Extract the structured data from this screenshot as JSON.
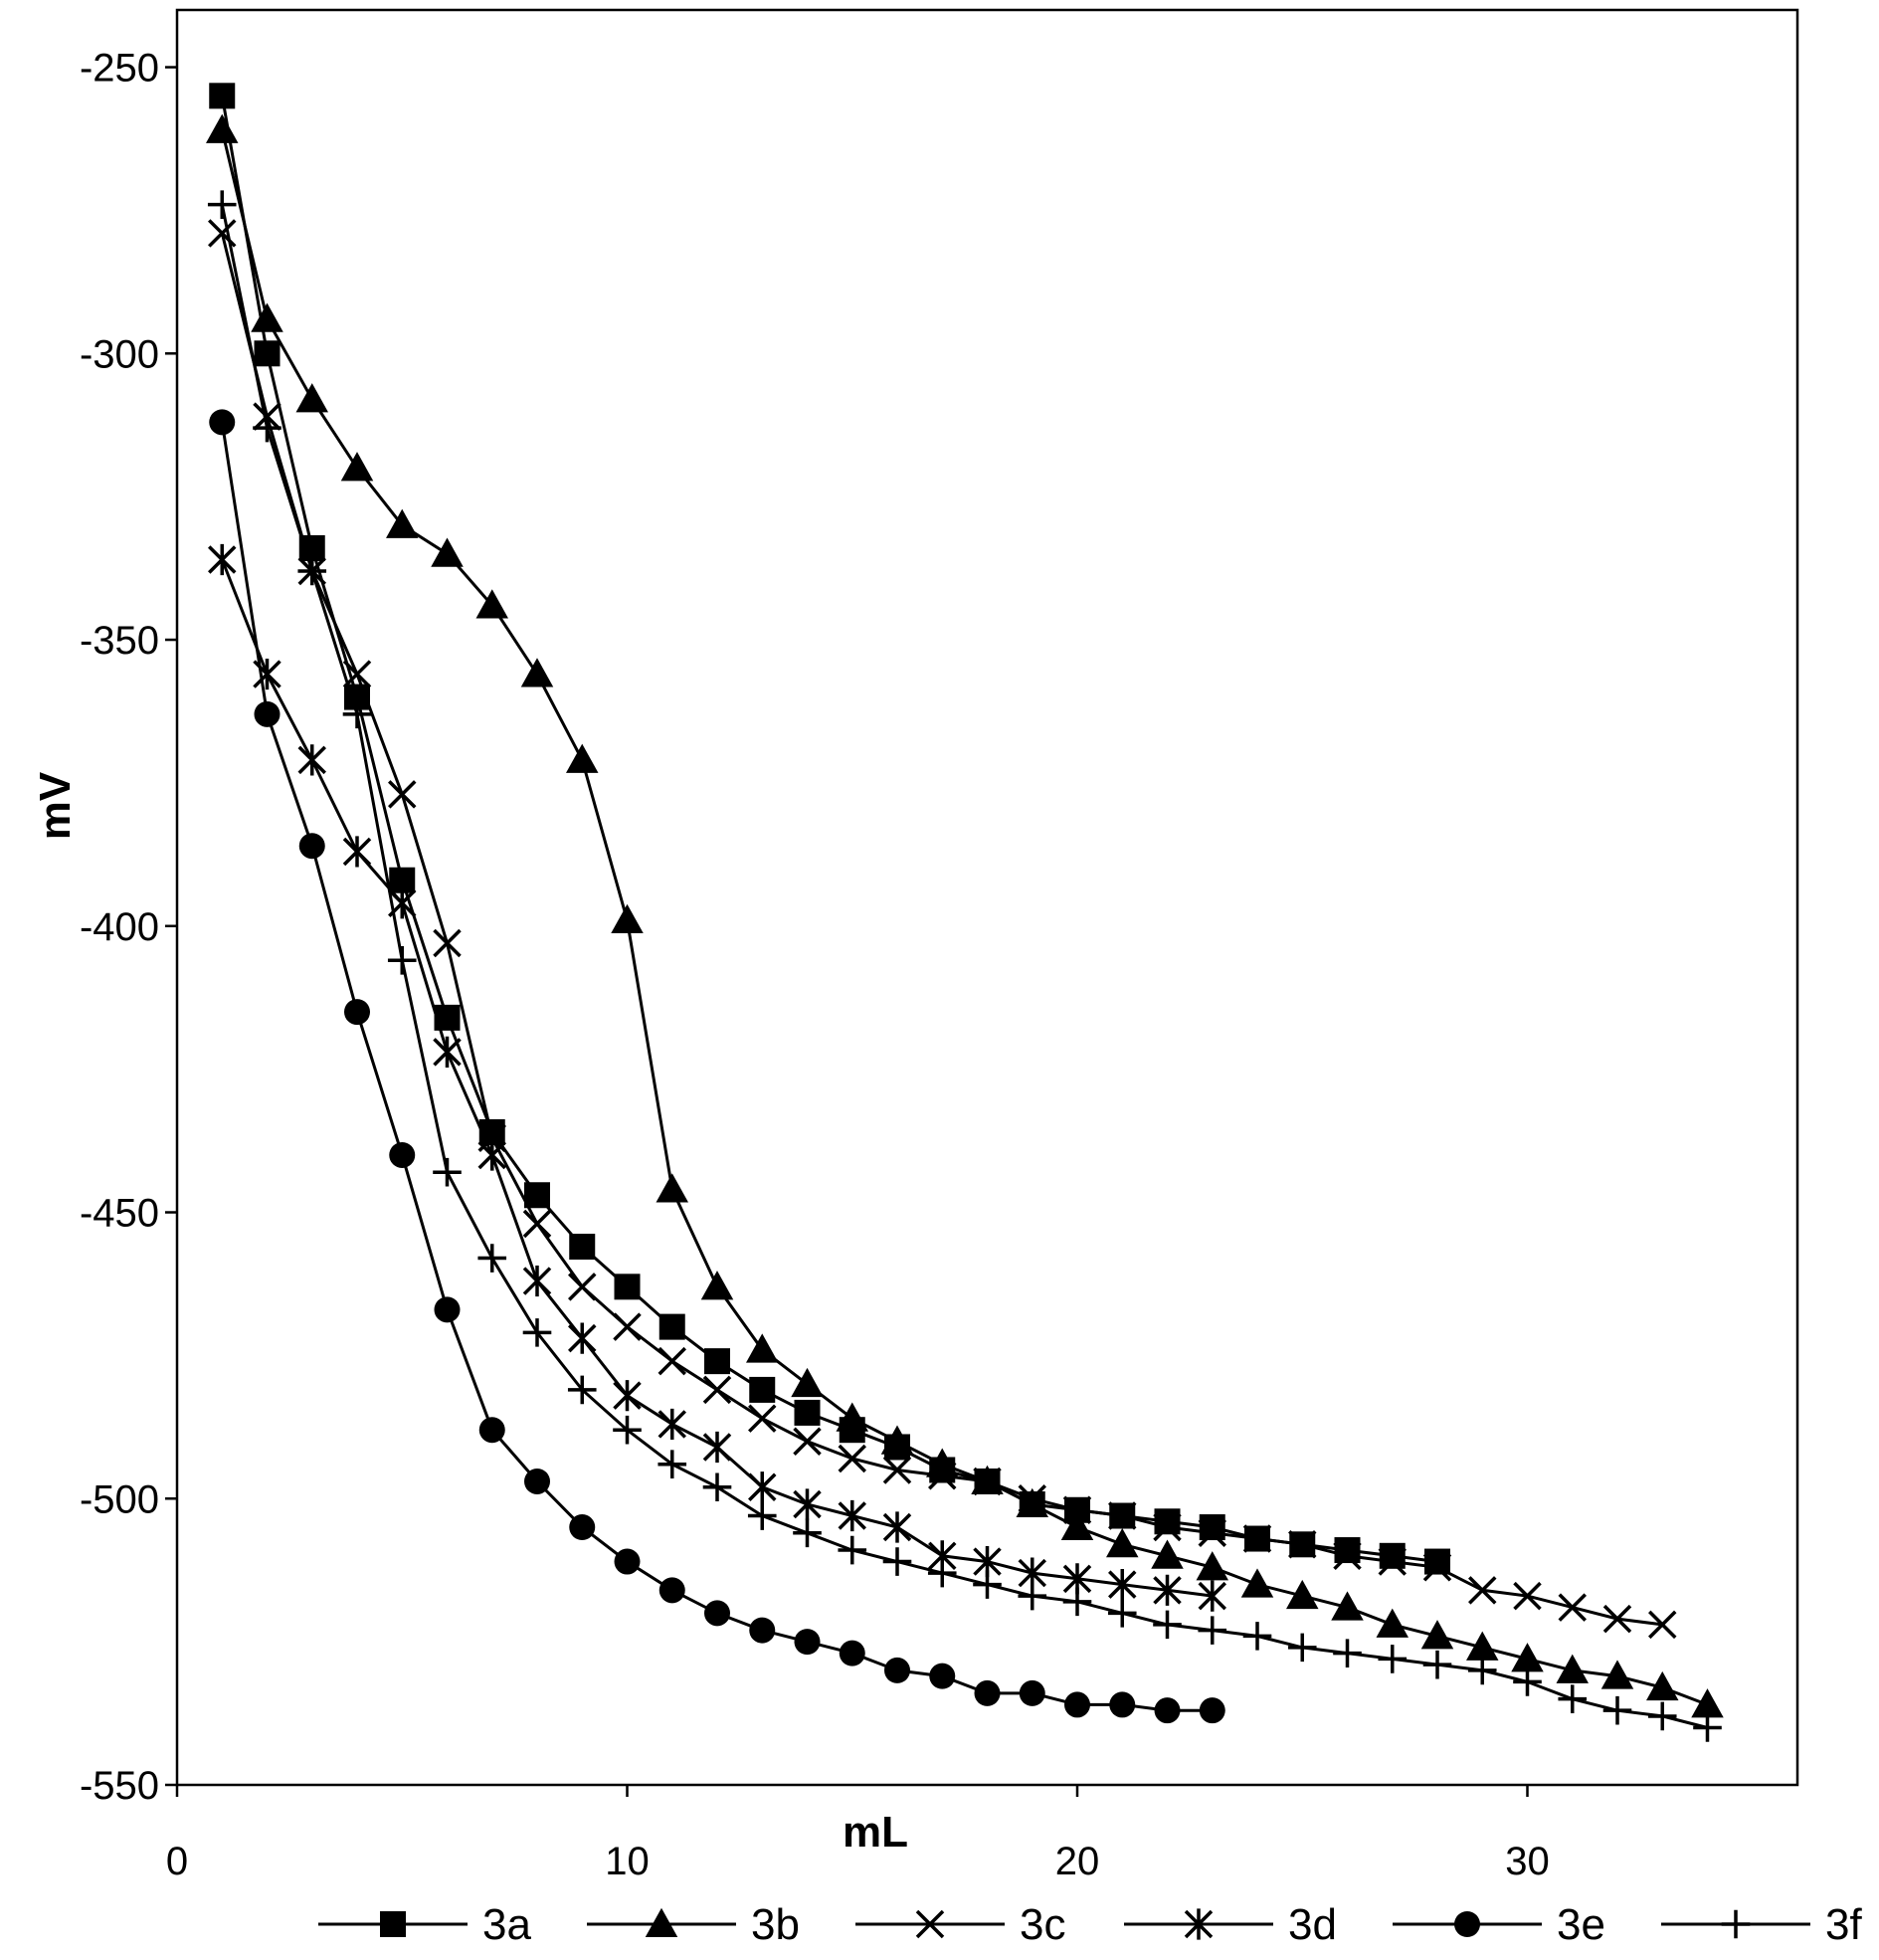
{
  "chart_data": {
    "type": "line",
    "title": "",
    "xlabel": "mL",
    "ylabel": "mV",
    "xlim": [
      0,
      36
    ],
    "ylim": [
      -550,
      -240
    ],
    "x_ticks": [
      0,
      10,
      20,
      30
    ],
    "y_ticks": [
      -250,
      -300,
      -350,
      -400,
      -450,
      -500,
      -550
    ],
    "grid": false,
    "legend_position": "bottom",
    "series": [
      {
        "name": "3a",
        "marker": "square",
        "points": [
          [
            1,
            -255
          ],
          [
            2,
            -300
          ],
          [
            3,
            -334
          ],
          [
            4,
            -360
          ],
          [
            5,
            -392
          ],
          [
            6,
            -416
          ],
          [
            7,
            -436
          ],
          [
            8,
            -447
          ],
          [
            9,
            -456
          ],
          [
            10,
            -463
          ],
          [
            11,
            -470
          ],
          [
            12,
            -476
          ],
          [
            13,
            -481
          ],
          [
            14,
            -485
          ],
          [
            15,
            -488
          ],
          [
            16,
            -491
          ],
          [
            17,
            -495
          ],
          [
            18,
            -497
          ],
          [
            19,
            -501
          ],
          [
            20,
            -502
          ],
          [
            21,
            -503
          ],
          [
            22,
            -504
          ],
          [
            23,
            -505
          ],
          [
            24,
            -507
          ],
          [
            25,
            -508
          ],
          [
            26,
            -509
          ],
          [
            27,
            -510
          ],
          [
            28,
            -511
          ]
        ]
      },
      {
        "name": "3b",
        "marker": "triangle",
        "points": [
          [
            1,
            -261
          ],
          [
            2,
            -294
          ],
          [
            3,
            -308
          ],
          [
            4,
            -320
          ],
          [
            5,
            -330
          ],
          [
            6,
            -335
          ],
          [
            7,
            -344
          ],
          [
            8,
            -356
          ],
          [
            9,
            -371
          ],
          [
            10,
            -399
          ],
          [
            11,
            -446
          ],
          [
            12,
            -463
          ],
          [
            13,
            -474
          ],
          [
            14,
            -480
          ],
          [
            15,
            -486
          ],
          [
            16,
            -490
          ],
          [
            17,
            -494
          ],
          [
            18,
            -497
          ],
          [
            19,
            -501
          ],
          [
            20,
            -505
          ],
          [
            21,
            -508
          ],
          [
            22,
            -510
          ],
          [
            23,
            -512
          ],
          [
            24,
            -515
          ],
          [
            25,
            -517
          ],
          [
            26,
            -519
          ],
          [
            27,
            -522
          ],
          [
            28,
            -524
          ],
          [
            29,
            -526
          ],
          [
            30,
            -528
          ],
          [
            31,
            -530
          ],
          [
            32,
            -531
          ],
          [
            33,
            -533
          ],
          [
            34,
            -536
          ]
        ]
      },
      {
        "name": "3c",
        "marker": "x",
        "points": [
          [
            1,
            -279
          ],
          [
            2,
            -311
          ],
          [
            3,
            -338
          ],
          [
            4,
            -356
          ],
          [
            5,
            -377
          ],
          [
            6,
            -403
          ],
          [
            7,
            -437
          ],
          [
            8,
            -452
          ],
          [
            9,
            -463
          ],
          [
            10,
            -470
          ],
          [
            11,
            -476
          ],
          [
            12,
            -481
          ],
          [
            13,
            -486
          ],
          [
            14,
            -490
          ],
          [
            15,
            -493
          ],
          [
            16,
            -495
          ],
          [
            17,
            -496
          ],
          [
            18,
            -497
          ],
          [
            19,
            -500
          ],
          [
            20,
            -502
          ],
          [
            21,
            -503
          ],
          [
            22,
            -505
          ],
          [
            23,
            -506
          ],
          [
            24,
            -507
          ],
          [
            25,
            -508
          ],
          [
            26,
            -510
          ],
          [
            27,
            -511
          ],
          [
            28,
            -512
          ],
          [
            29,
            -516
          ],
          [
            30,
            -517
          ],
          [
            31,
            -519
          ],
          [
            32,
            -521
          ],
          [
            33,
            -522
          ]
        ]
      },
      {
        "name": "3d",
        "marker": "star",
        "points": [
          [
            1,
            -336
          ],
          [
            2,
            -356
          ],
          [
            3,
            -371
          ],
          [
            4,
            -387
          ],
          [
            5,
            -396
          ],
          [
            6,
            -422
          ],
          [
            7,
            -440
          ],
          [
            8,
            -462
          ],
          [
            9,
            -472
          ],
          [
            10,
            -482
          ],
          [
            11,
            -487
          ],
          [
            12,
            -491
          ],
          [
            13,
            -498
          ],
          [
            14,
            -501
          ],
          [
            15,
            -503
          ],
          [
            16,
            -505
          ],
          [
            17,
            -510
          ],
          [
            18,
            -511
          ],
          [
            19,
            -513
          ],
          [
            20,
            -514
          ],
          [
            21,
            -515
          ],
          [
            22,
            -516
          ],
          [
            23,
            -517
          ]
        ]
      },
      {
        "name": "3e",
        "marker": "circle",
        "points": [
          [
            1,
            -312
          ],
          [
            2,
            -363
          ],
          [
            3,
            -386
          ],
          [
            4,
            -415
          ],
          [
            5,
            -440
          ],
          [
            6,
            -467
          ],
          [
            7,
            -488
          ],
          [
            8,
            -497
          ],
          [
            9,
            -505
          ],
          [
            10,
            -511
          ],
          [
            11,
            -516
          ],
          [
            12,
            -520
          ],
          [
            13,
            -523
          ],
          [
            14,
            -525
          ],
          [
            15,
            -527
          ],
          [
            16,
            -530
          ],
          [
            17,
            -531
          ],
          [
            18,
            -534
          ],
          [
            19,
            -534
          ],
          [
            20,
            -536
          ],
          [
            21,
            -536
          ],
          [
            22,
            -537
          ],
          [
            23,
            -537
          ]
        ]
      },
      {
        "name": "3f",
        "marker": "plus",
        "points": [
          [
            1,
            -274
          ],
          [
            2,
            -313
          ],
          [
            3,
            -338
          ],
          [
            4,
            -363
          ],
          [
            5,
            -406
          ],
          [
            6,
            -443
          ],
          [
            7,
            -458
          ],
          [
            8,
            -471
          ],
          [
            9,
            -481
          ],
          [
            10,
            -488
          ],
          [
            11,
            -494
          ],
          [
            12,
            -498
          ],
          [
            13,
            -503
          ],
          [
            14,
            -506
          ],
          [
            15,
            -509
          ],
          [
            16,
            -511
          ],
          [
            17,
            -513
          ],
          [
            18,
            -515
          ],
          [
            19,
            -517
          ],
          [
            20,
            -518
          ],
          [
            21,
            -520
          ],
          [
            22,
            -522
          ],
          [
            23,
            -523
          ],
          [
            24,
            -524
          ],
          [
            25,
            -526
          ],
          [
            26,
            -527
          ],
          [
            27,
            -528
          ],
          [
            28,
            -529
          ],
          [
            29,
            -530
          ],
          [
            30,
            -532
          ],
          [
            31,
            -535
          ],
          [
            32,
            -537
          ],
          [
            33,
            -538
          ],
          [
            34,
            -540
          ]
        ]
      }
    ]
  }
}
